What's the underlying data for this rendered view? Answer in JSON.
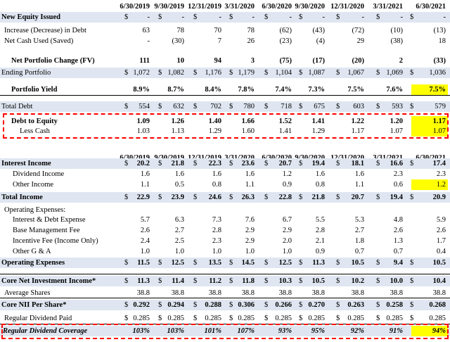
{
  "headers": [
    "6/30/2019",
    "9/30/2019",
    "12/31/2019",
    "3/31/2020",
    "6/30/2020",
    "9/30/2020",
    "12/31/2020",
    "3/31/2021",
    "6/30/2021"
  ],
  "table1": [
    {
      "id": "new-equity-issued",
      "label": "New Equity Issued",
      "style": "bold",
      "shade": true,
      "indent": 2,
      "cur": "$",
      "values": [
        "-",
        "-",
        "-",
        "-",
        "-",
        "-",
        "-",
        "-",
        "-"
      ]
    },
    {
      "id": "increase-in-debt",
      "label": "Increase (Decrease) in Debt",
      "indent": 6,
      "values": [
        "63",
        "78",
        "70",
        "78",
        "(62)",
        "(43)",
        "(72)",
        "(10)",
        "(13)"
      ]
    },
    {
      "id": "net-cash-used",
      "label": "Net Cash Used (Saved)",
      "indent": 6,
      "values": [
        "-",
        "(30)",
        "7",
        "26",
        "(23)",
        "(4)",
        "29",
        "(38)",
        "18"
      ]
    },
    {
      "id": "net-portfolio-change",
      "label": "Net Portfolio Change (FV)",
      "style": "bold",
      "indent": 16,
      "values": [
        "111",
        "10",
        "94",
        "3",
        "(75)",
        "(17)",
        "(20)",
        "2",
        "(33)"
      ]
    },
    {
      "id": "ending-portfolio",
      "label": "Ending Portfolio",
      "shade": true,
      "indent": 2,
      "cur": "$",
      "values": [
        "1,072",
        "1,082",
        "1,176",
        "1,179",
        "1,104",
        "1,087",
        "1,067",
        "1,069",
        "1,036"
      ]
    },
    {
      "id": "portfolio-yield",
      "label": "Portfolio Yield",
      "style": "bold",
      "indent": 16,
      "values": [
        "8.9%",
        "8.7%",
        "8.4%",
        "7.8%",
        "7.4%",
        "7.3%",
        "7.5%",
        "7.6%",
        "7.5%"
      ],
      "highlight_last": true
    },
    {
      "id": "total-debt",
      "label": "Total Debt",
      "shade": true,
      "indent": 2,
      "cur": "$",
      "values": [
        "554",
        "632",
        "702",
        "780",
        "718",
        "675",
        "603",
        "593",
        "579"
      ]
    },
    {
      "id": "debt-to-equity",
      "label": "Debt to Equity",
      "style": "bold",
      "indent": 16,
      "values": [
        "1.09",
        "1.26",
        "1.40",
        "1.66",
        "1.52",
        "1.41",
        "1.22",
        "1.20",
        "1.17"
      ],
      "highlight_last": true
    },
    {
      "id": "less-cash",
      "label": "Less Cash",
      "indent": 28,
      "values": [
        "1.03",
        "1.13",
        "1.29",
        "1.60",
        "1.41",
        "1.29",
        "1.17",
        "1.07",
        "1.07"
      ],
      "highlight_last": true
    }
  ],
  "table2": [
    {
      "id": "interest-income",
      "label": "Interest Income",
      "style": "bold",
      "shade": true,
      "indent": 2,
      "cur": "$",
      "values": [
        "20.2",
        "21.8",
        "22.3",
        "23.6",
        "20.7",
        "19.4",
        "18.1",
        "16.6",
        "17.4"
      ]
    },
    {
      "id": "dividend-income",
      "label": "Dividend Income",
      "indent": 18,
      "values": [
        "1.6",
        "1.6",
        "1.6",
        "1.6",
        "1.2",
        "1.6",
        "1.6",
        "2.3",
        "2.3"
      ]
    },
    {
      "id": "other-income",
      "label": "Other Income",
      "indent": 18,
      "values": [
        "1.1",
        "0.5",
        "0.8",
        "1.1",
        "0.9",
        "0.8",
        "1.1",
        "0.6",
        "1.2"
      ],
      "highlight_last": true
    },
    {
      "id": "total-income",
      "label": "Total Income",
      "style": "bold",
      "shade": true,
      "indent": 2,
      "cur": "$",
      "values": [
        "22.9",
        "23.9",
        "24.6",
        "26.3",
        "22.8",
        "21.8",
        "20.7",
        "19.4",
        "20.9"
      ]
    },
    {
      "id": "operating-expenses-header",
      "label": "Operating Expenses:",
      "indent": 6,
      "values": []
    },
    {
      "id": "interest-debt-expense",
      "label": "Interest & Debt Expense",
      "indent": 18,
      "values": [
        "5.7",
        "6.3",
        "7.3",
        "7.6",
        "6.7",
        "5.5",
        "5.3",
        "4.8",
        "5.9"
      ]
    },
    {
      "id": "base-management-fee",
      "label": "Base Management Fee",
      "indent": 18,
      "values": [
        "2.6",
        "2.7",
        "2.8",
        "2.9",
        "2.9",
        "2.8",
        "2.7",
        "2.6",
        "2.6"
      ]
    },
    {
      "id": "incentive-fee",
      "label": "Incentive Fee (Income Only)",
      "indent": 18,
      "values": [
        "2.4",
        "2.5",
        "2.3",
        "2.9",
        "2.0",
        "2.1",
        "1.8",
        "1.3",
        "1.7"
      ]
    },
    {
      "id": "other-g-a",
      "label": "Other G & A",
      "indent": 18,
      "values": [
        "1.0",
        "1.0",
        "1.0",
        "1.0",
        "1.0",
        "0.9",
        "0.7",
        "0.7",
        "0.4"
      ]
    },
    {
      "id": "operating-expenses",
      "label": "Operating Expenses",
      "style": "bold",
      "shade": true,
      "indent": 2,
      "cur": "$",
      "values": [
        "11.5",
        "12.5",
        "13.5",
        "14.5",
        "12.5",
        "11.3",
        "10.5",
        "9.4",
        "10.5"
      ]
    },
    {
      "id": "core-net-investment-income",
      "label": "Core Net Investment Income*",
      "style": "bold",
      "shade": true,
      "indent": 2,
      "cur": "$",
      "values": [
        "11.3",
        "11.4",
        "11.2",
        "11.8",
        "10.3",
        "10.5",
        "10.2",
        "10.0",
        "10.4"
      ]
    },
    {
      "id": "average-shares",
      "label": "Average Shares",
      "indent": 6,
      "values": [
        "38.8",
        "38.8",
        "38.8",
        "38.8",
        "38.8",
        "38.8",
        "38.8",
        "38.8",
        "38.8"
      ]
    },
    {
      "id": "core-nii-per-share",
      "label": "Core NII Per Share*",
      "style": "bold",
      "shade": true,
      "indent": 2,
      "cur": "$",
      "values": [
        "0.292",
        "0.294",
        "0.288",
        "0.306",
        "0.266",
        "0.270",
        "0.263",
        "0.258",
        "0.268"
      ]
    },
    {
      "id": "regular-dividend-paid",
      "label": "Regular Dividend Paid",
      "indent": 6,
      "cur": "$",
      "values": [
        "0.285",
        "0.285",
        "0.285",
        "0.285",
        "0.285",
        "0.285",
        "0.285",
        "0.285",
        "0.285"
      ]
    },
    {
      "id": "regular-dividend-coverage",
      "label": "Regular Dividend Coverage",
      "style": "bold-italic",
      "shade": true,
      "indent": 4,
      "values": [
        "103%",
        "103%",
        "101%",
        "107%",
        "93%",
        "95%",
        "92%",
        "91%",
        "94%"
      ],
      "highlight_last": true
    }
  ]
}
